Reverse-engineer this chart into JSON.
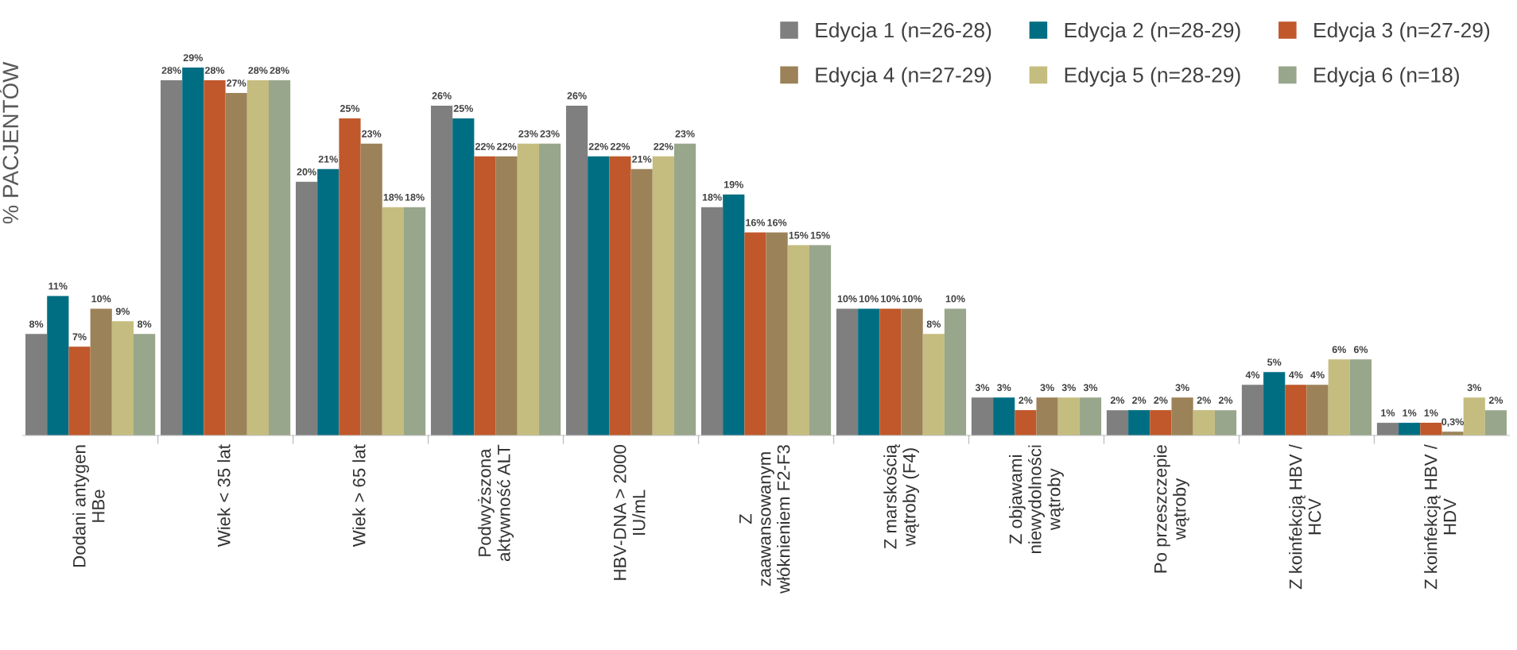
{
  "chart_data": {
    "type": "bar",
    "ylabel": "% PACJENTÓW",
    "categories": [
      "Dodani antygen\nHBe",
      "Wiek < 35 lat",
      "Wiek > 65 lat",
      "Podwyższona\naktywność ALT",
      "HBV-DNA > 2000\nIU/mL",
      "Z\nzaawansowanym\nwłóknieniem F2-F3",
      "Z marskością\nwątroby (F4)",
      "Z objawami\nniewydolności\nwątroby",
      "Po przeszczepie\nwątroby",
      "Z koinfekcją HBV /\nHCV",
      "Z koinfekcją HBV /\nHDV"
    ],
    "series": [
      {
        "name": "Edycja 1 (n=26-28)",
        "color": "#7f7f7f",
        "values": [
          8,
          28,
          20,
          26,
          26,
          18,
          10,
          3,
          2,
          4,
          1
        ],
        "value_labels": [
          "8%",
          "28%",
          "20%",
          "26%",
          "26%",
          "18%",
          "10%",
          "3%",
          "2%",
          "4%",
          "1%"
        ]
      },
      {
        "name": "Edycja 2 (n=28-29)",
        "color": "#006e82",
        "values": [
          11,
          29,
          21,
          25,
          22,
          19,
          10,
          3,
          2,
          5,
          1
        ],
        "value_labels": [
          "11%",
          "29%",
          "21%",
          "25%",
          "22%",
          "19%",
          "10%",
          "3%",
          "2%",
          "5%",
          "1%"
        ]
      },
      {
        "name": "Edycja 3 (n=27-29)",
        "color": "#c0582b",
        "values": [
          7,
          28,
          25,
          22,
          22,
          16,
          10,
          2,
          2,
          4,
          1
        ],
        "value_labels": [
          "7%",
          "28%",
          "25%",
          "22%",
          "22%",
          "16%",
          "10%",
          "2%",
          "2%",
          "4%",
          "1%"
        ]
      },
      {
        "name": "Edycja 4 (n=27-29)",
        "color": "#9c8258",
        "values": [
          10,
          27,
          23,
          22,
          21,
          16,
          10,
          3,
          3,
          4,
          0.3
        ],
        "value_labels": [
          "10%",
          "27%",
          "23%",
          "22%",
          "21%",
          "16%",
          "10%",
          "3%",
          "3%",
          "4%",
          "0,3%"
        ]
      },
      {
        "name": "Edycja 5 (n=28-29)",
        "color": "#c5bd7f",
        "values": [
          9,
          28,
          18,
          23,
          22,
          15,
          8,
          3,
          2,
          6,
          3
        ],
        "value_labels": [
          "9%",
          "28%",
          "18%",
          "23%",
          "22%",
          "15%",
          "8%",
          "3%",
          "2%",
          "6%",
          "3%"
        ]
      },
      {
        "name": "Edycja 6 (n=18)",
        "color": "#98a68b",
        "values": [
          8,
          28,
          18,
          23,
          23,
          15,
          10,
          3,
          2,
          6,
          2
        ],
        "value_labels": [
          "8%",
          "28%",
          "18%",
          "23%",
          "23%",
          "15%",
          "10%",
          "3%",
          "2%",
          "6%",
          "2%"
        ]
      }
    ],
    "legend": "top right",
    "grid": false
  }
}
